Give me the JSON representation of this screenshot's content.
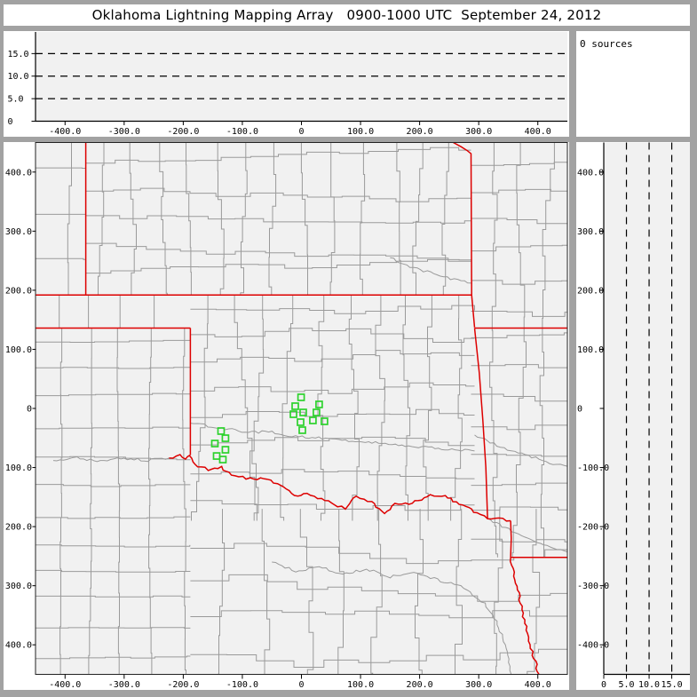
{
  "title": "Oklahoma Lightning Mapping Array   0900-1000 UTC  September 24, 2012",
  "annotations": {
    "sources": "0 sources"
  },
  "colors": {
    "page_bg": "#a2a2a2",
    "panel_bg": "#ffffff",
    "plot_bg": "#f1f1f1",
    "axis": "#000000",
    "frame": "#222222",
    "county": "#9a9a9a",
    "river": "#9a9a9a",
    "state_border": "#dd0000",
    "station": "#2dd22d",
    "grid_dash": "#000000"
  },
  "chart_data": [
    {
      "id": "ew_altitude_panel",
      "type": "scatter",
      "description": "East-West distance vs altitude projection, no sources plotted",
      "xlim": [
        -450,
        450
      ],
      "ylim": [
        0,
        19.8
      ],
      "x_ticks": {
        "values": [
          -400,
          -300,
          -200,
          -100,
          0,
          100,
          200,
          300,
          400
        ],
        "labels": [
          "-400.0",
          "-300.0",
          "-200.0",
          "-100.0",
          "0",
          "100.0",
          "200.0",
          "300.0",
          "400.0"
        ]
      },
      "y_ticks": {
        "values": [
          0,
          5,
          10,
          15
        ],
        "labels": [
          "0",
          "5.0",
          "10.0",
          "15.0"
        ]
      },
      "gridlines_y": [
        5,
        10,
        15
      ],
      "grid_style": "dashed",
      "points": []
    },
    {
      "id": "plan_view_map",
      "type": "scatter",
      "description": "Plan view map, km east/north of network center",
      "xlim": [
        -450,
        450
      ],
      "ylim": [
        -450,
        450
      ],
      "x_ticks": {
        "values": [
          -400,
          -300,
          -200,
          -100,
          0,
          100,
          200,
          300,
          400
        ],
        "labels": [
          "-400.0",
          "-300.0",
          "-200.0",
          "-100.0",
          "0",
          "100.0",
          "200.0",
          "300.0",
          "400.0"
        ]
      },
      "y_ticks": {
        "values": [
          400,
          300,
          200,
          100,
          0,
          -100,
          -200,
          -300,
          -400
        ],
        "labels": [
          "400.0",
          "300.0",
          "200.0",
          "100.0",
          "0",
          "-100.0",
          "-200.0",
          "-300.0",
          "-400.0"
        ]
      },
      "stations_km": [
        [
          -0.6,
          18.8
        ],
        [
          -10.5,
          3.8
        ],
        [
          29.9,
          6.8
        ],
        [
          -13.5,
          -9.8
        ],
        [
          3.0,
          -6.8
        ],
        [
          25.4,
          -6.8
        ],
        [
          -1.5,
          -23.3
        ],
        [
          19.4,
          -20.3
        ],
        [
          38.9,
          -21.8
        ],
        [
          1.5,
          -36.8
        ],
        [
          -136.0,
          -38.3
        ],
        [
          -128.6,
          -50.4
        ],
        [
          -146.5,
          -59.4
        ],
        [
          -128.6,
          -69.9
        ],
        [
          -143.5,
          -80.5
        ],
        [
          -133.0,
          -86.5
        ]
      ],
      "state_borders_km": [
        {
          "name": "co-ks-102w",
          "wiggle": false,
          "pts": [
            [
              -365,
              450
            ],
            [
              -365,
              192
            ]
          ]
        },
        {
          "name": "ks-ok-37n",
          "wiggle": false,
          "pts": [
            [
              -450,
              192
            ],
            [
              287,
              192
            ]
          ]
        },
        {
          "name": "okpan-tx-36-5n",
          "wiggle": false,
          "pts": [
            [
              -450,
              136
            ],
            [
              -188,
              136
            ]
          ]
        },
        {
          "name": "ok-tx-100w",
          "wiggle": false,
          "pts": [
            [
              -188,
              136
            ],
            [
              -188,
              -79
            ]
          ]
        },
        {
          "name": "red-river",
          "wiggle": true,
          "pts": [
            [
              -224,
              -84
            ],
            [
              -206,
              -79
            ],
            [
              -196,
              -86
            ],
            [
              -188,
              -79
            ],
            [
              -181,
              -96
            ],
            [
              -158,
              -103
            ],
            [
              -136,
              -100
            ],
            [
              -118,
              -111
            ],
            [
              -81,
              -121
            ],
            [
              -57,
              -118
            ],
            [
              -36,
              -132
            ],
            [
              -6,
              -148
            ],
            [
              9,
              -145
            ],
            [
              28,
              -151
            ],
            [
              51,
              -160
            ],
            [
              73,
              -169
            ],
            [
              93,
              -148
            ],
            [
              100,
              -151
            ],
            [
              118,
              -159
            ],
            [
              140,
              -177
            ],
            [
              158,
              -162
            ],
            [
              182,
              -162
            ],
            [
              203,
              -154
            ],
            [
              218,
              -148
            ],
            [
              238,
              -147
            ],
            [
              257,
              -156
            ],
            [
              278,
              -166
            ],
            [
              297,
              -177
            ],
            [
              315,
              -186
            ],
            [
              334,
              -186
            ],
            [
              354,
              -190
            ]
          ]
        },
        {
          "name": "mo-west",
          "wiggle": false,
          "pts": [
            [
              257,
              450
            ],
            [
              270,
              443
            ],
            [
              281,
              436
            ],
            [
              287,
              431
            ],
            [
              288,
              192
            ],
            [
              293,
              137
            ]
          ]
        },
        {
          "name": "mo-ar-36-5n",
          "wiggle": false,
          "pts": [
            [
              293,
              136
            ],
            [
              450,
              136
            ]
          ]
        },
        {
          "name": "ok-ar",
          "wiggle": false,
          "pts": [
            [
              293,
              136
            ],
            [
              301,
              60
            ],
            [
              307,
              -20
            ],
            [
              312,
              -100
            ],
            [
              315,
              -186
            ]
          ]
        },
        {
          "name": "tx-ar",
          "wiggle": false,
          "pts": [
            [
              354,
              -190
            ],
            [
              355,
              -220
            ],
            [
              354,
              -252
            ]
          ]
        },
        {
          "name": "ar-la-33n",
          "wiggle": false,
          "pts": [
            [
              354,
              -252
            ],
            [
              450,
              -252
            ]
          ]
        },
        {
          "name": "tx-la",
          "wiggle": true,
          "pts": [
            [
              354,
              -252
            ],
            [
              362,
              -290
            ],
            [
              372,
              -335
            ],
            [
              381,
              -375
            ],
            [
              390,
              -412
            ],
            [
              402,
              -450
            ]
          ]
        }
      ],
      "rivers_km": [
        [
          [
            -420,
            -88
          ],
          [
            -380,
            -84
          ],
          [
            -340,
            -90
          ],
          [
            -300,
            -84
          ],
          [
            -260,
            -88
          ],
          [
            -224,
            -84
          ]
        ],
        [
          [
            -188,
            -25
          ],
          [
            -140,
            -32
          ],
          [
            -95,
            -40
          ],
          [
            -50,
            -40
          ],
          [
            -10,
            -48
          ],
          [
            35,
            -50
          ],
          [
            80,
            -55
          ],
          [
            125,
            -58
          ],
          [
            170,
            -64
          ],
          [
            215,
            -66
          ],
          [
            260,
            -70
          ],
          [
            293,
            -72
          ]
        ],
        [
          [
            150,
            255
          ],
          [
            190,
            238
          ],
          [
            235,
            224
          ],
          [
            270,
            216
          ],
          [
            287,
            212
          ]
        ],
        [
          [
            293,
            -45
          ],
          [
            325,
            -60
          ],
          [
            355,
            -72
          ],
          [
            390,
            -82
          ],
          [
            420,
            -92
          ],
          [
            450,
            -98
          ]
        ],
        [
          [
            315,
            -186
          ],
          [
            345,
            -202
          ],
          [
            378,
            -218
          ],
          [
            415,
            -233
          ],
          [
            450,
            -243
          ]
        ],
        [
          [
            -50,
            -260
          ],
          [
            -10,
            -275
          ],
          [
            30,
            -268
          ],
          [
            70,
            -280
          ],
          [
            110,
            -272
          ],
          [
            150,
            -285
          ],
          [
            190,
            -278
          ],
          [
            230,
            -290
          ],
          [
            270,
            -300
          ],
          [
            310,
            -330
          ],
          [
            330,
            -360
          ],
          [
            345,
            -400
          ],
          [
            350,
            -430
          ],
          [
            355,
            -450
          ]
        ]
      ],
      "county_regions": [
        {
          "name": "colorado",
          "x": [
            -450,
            -365
          ],
          "y": [
            192,
            450
          ],
          "sx": 80,
          "sy": 80,
          "jog": 4,
          "seed": 5
        },
        {
          "name": "kansas",
          "x": [
            -365,
            287
          ],
          "y": [
            192,
            450
          ],
          "sx": 49,
          "sy": 46,
          "jog": 6,
          "seed": 7
        },
        {
          "name": "ok-panhandle",
          "x": [
            -450,
            -188
          ],
          "y": [
            136,
            192
          ],
          "sx": 53,
          "sy": 200,
          "jog": 2,
          "seed": 8
        },
        {
          "name": "tx-panhandle",
          "x": [
            -450,
            -188
          ],
          "y": [
            -450,
            136
          ],
          "sx": 50,
          "sy": 50,
          "jog": 2,
          "seed": 9
        },
        {
          "name": "ok-main",
          "x": [
            -188,
            293
          ],
          "y": [
            -190,
            192
          ],
          "sx": 48,
          "sy": 45,
          "jog": 9,
          "seed": 13
        },
        {
          "name": "east-ar-mo",
          "x": [
            287,
            450
          ],
          "y": [
            -252,
            450
          ],
          "sx": 52,
          "sy": 48,
          "jog": 8,
          "seed": 17
        },
        {
          "name": "tx-south",
          "x": [
            -188,
            450
          ],
          "y": [
            -450,
            -170
          ],
          "sx": 62,
          "sy": 56,
          "jog": 13,
          "seed": 21
        }
      ]
    },
    {
      "id": "ns_altitude_panel",
      "type": "scatter",
      "description": "Altitude vs North-South distance projection, no sources plotted",
      "xlim": [
        0,
        19.0
      ],
      "ylim": [
        -450,
        450
      ],
      "x_ticks": {
        "values": [
          0,
          5,
          10,
          15
        ],
        "labels": [
          "0",
          "5.0",
          "10.0",
          "15.0"
        ]
      },
      "y_ticks": {
        "values": [
          400,
          300,
          200,
          100,
          0,
          -100,
          -200,
          -300,
          -400
        ],
        "labels": [
          "400.0",
          "300.0",
          "200.0",
          "100.0",
          "0",
          "-100.0",
          "-200.0",
          "-300.0",
          "-400.0"
        ]
      },
      "gridlines_x": [
        5,
        10,
        15
      ],
      "grid_style": "dashed",
      "points": []
    }
  ]
}
